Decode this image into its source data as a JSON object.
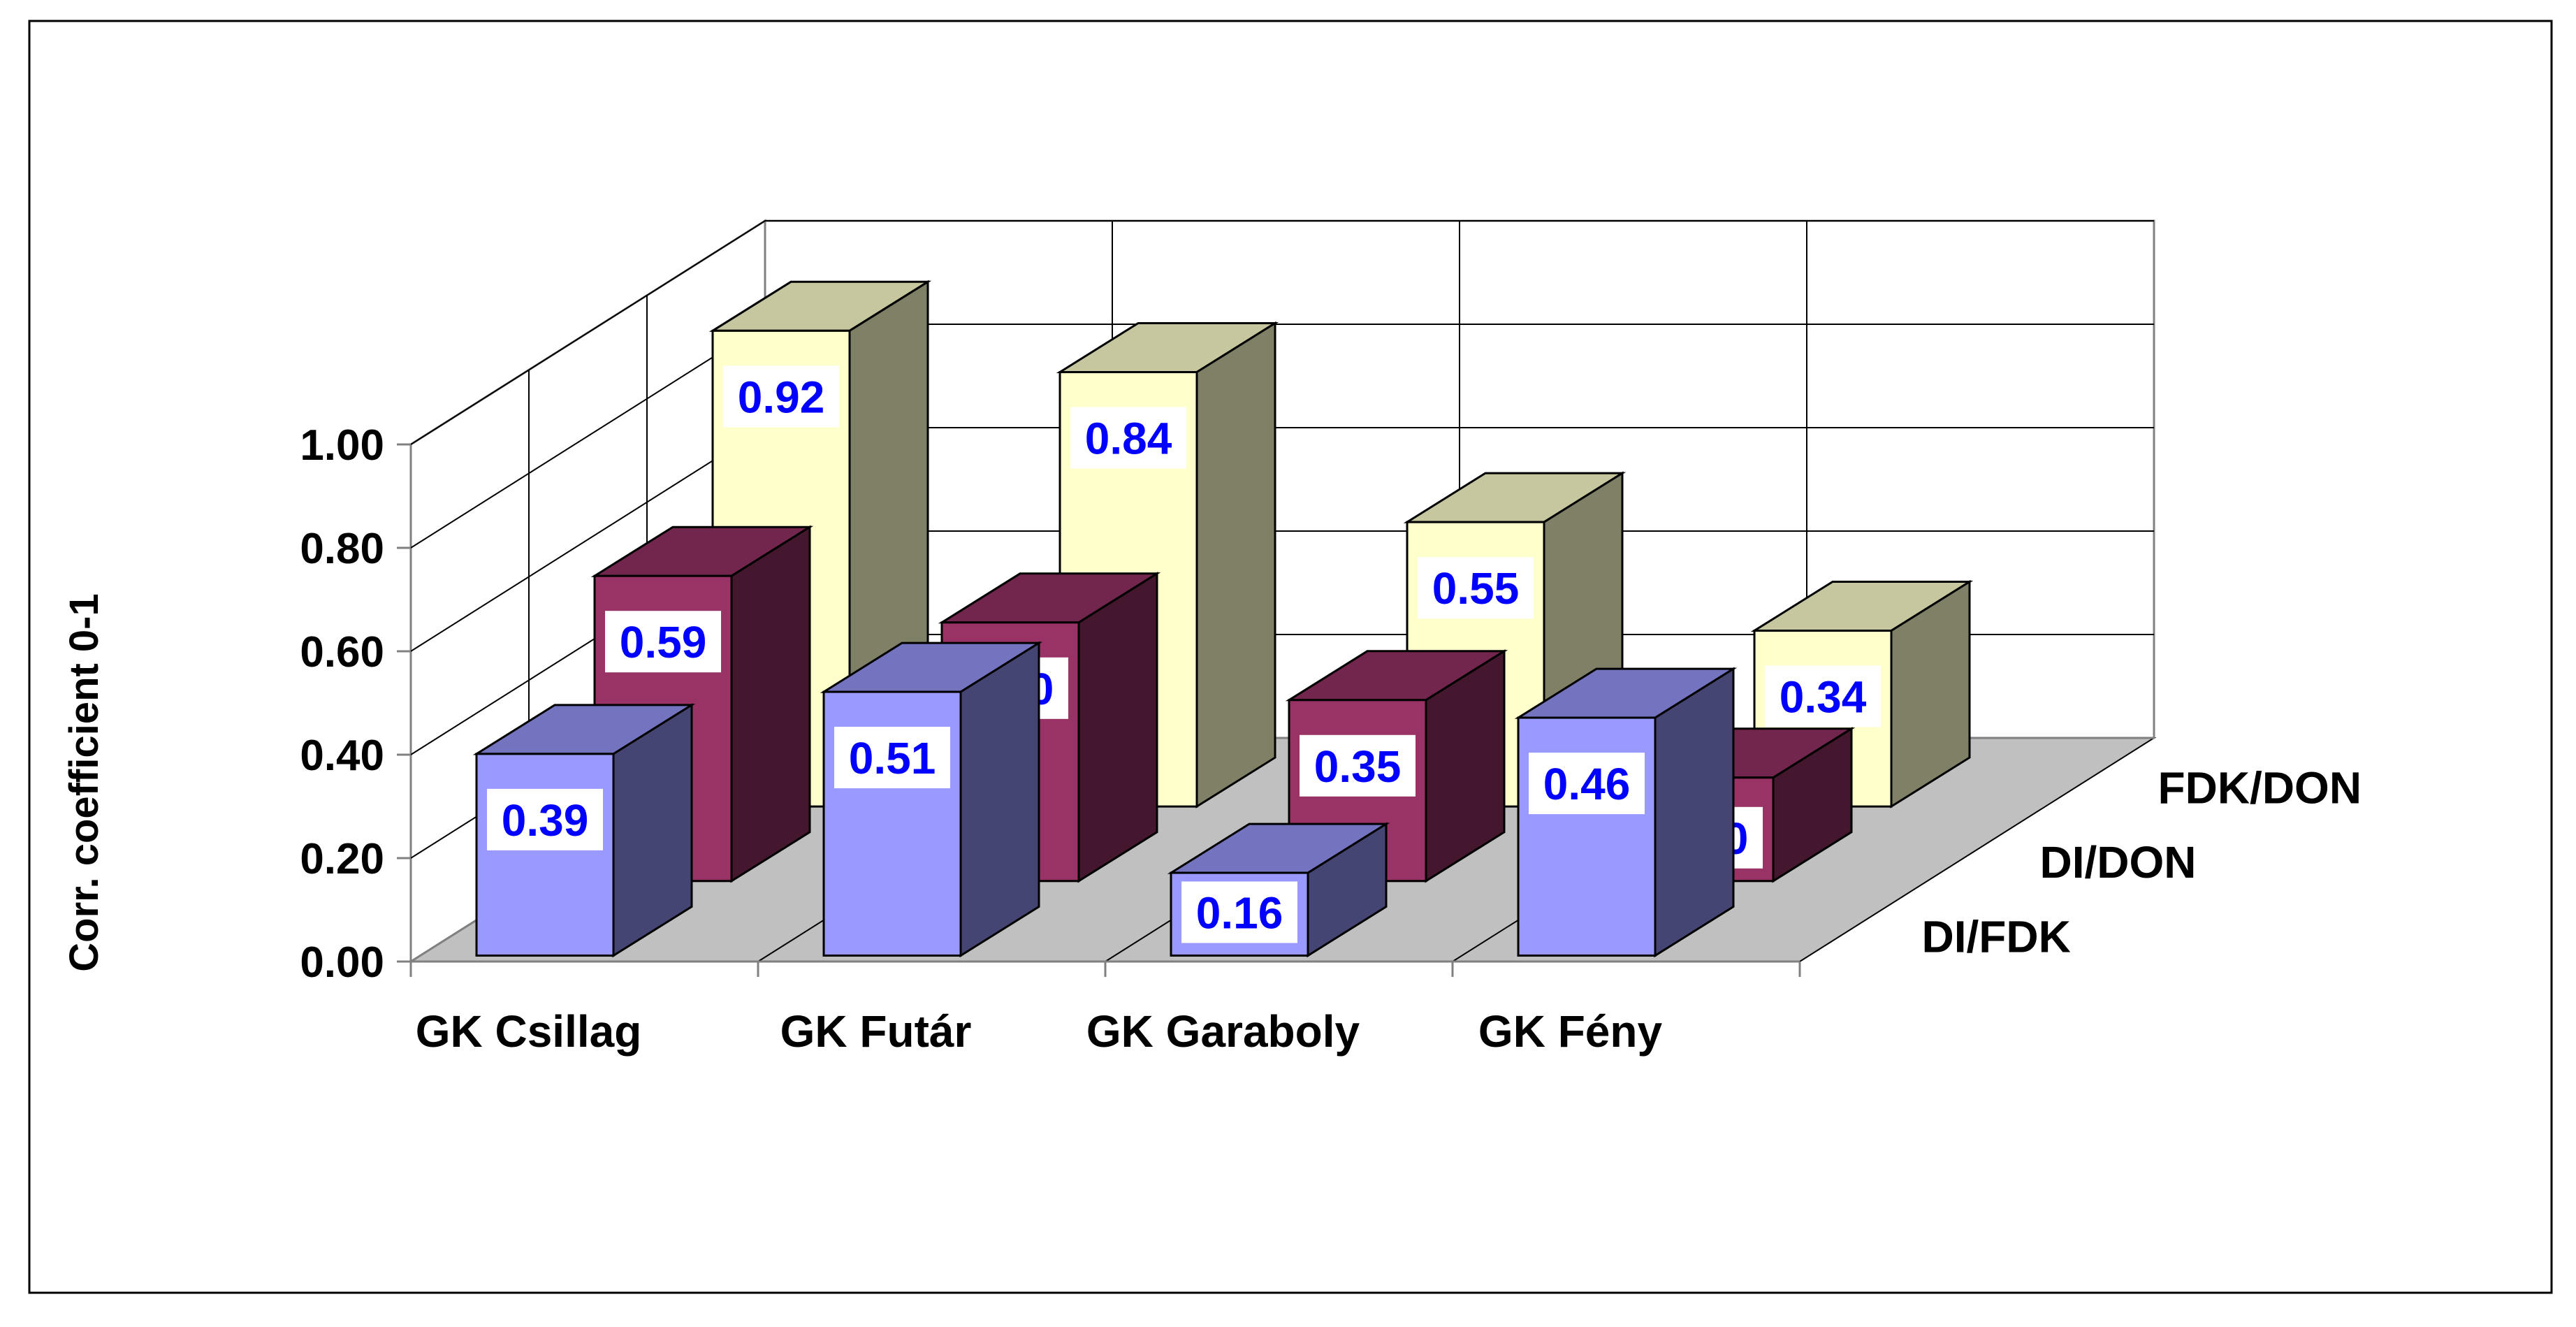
{
  "chart_data": {
    "type": "bar",
    "subtype": "3d-clustered-depth",
    "title": "",
    "xlabel": "",
    "ylabel": "Corr. coefficient 0-1",
    "ylim": [
      0,
      1.0
    ],
    "yticks": [
      "0.00",
      "0.20",
      "0.40",
      "0.60",
      "0.80",
      "1.00"
    ],
    "categories": [
      "GK Csillag",
      "GK Futár",
      "GK Garaboly",
      "GK Fény"
    ],
    "series": [
      {
        "name": "DI/FDK",
        "values": [
          0.39,
          0.51,
          0.16,
          0.46
        ],
        "labels": [
          "0.39",
          "0.51",
          "0.16",
          "0.46"
        ],
        "color": "#9999ff"
      },
      {
        "name": "DI/DON",
        "values": [
          0.59,
          0.5,
          0.35,
          0.2
        ],
        "labels": [
          "0.59",
          "0.50",
          "0.35",
          "0.20"
        ],
        "color": "#993366"
      },
      {
        "name": "FDK/DON",
        "values": [
          0.92,
          0.84,
          0.55,
          0.34
        ],
        "labels": [
          "0.92",
          "0.84",
          "0.55",
          "0.34"
        ],
        "color": "#ffffcc"
      }
    ],
    "grid": true,
    "data_label_color": "#0000ff"
  }
}
